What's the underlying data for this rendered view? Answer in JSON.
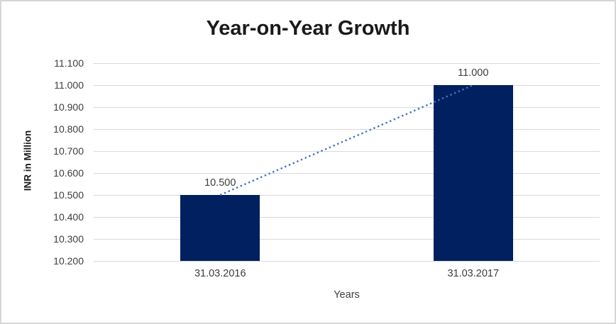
{
  "window": {
    "background": "#ffffff",
    "border_color": "#d6d6d6"
  },
  "chart_data": {
    "type": "bar",
    "title": "Year-on-Year Growth",
    "categories": [
      "31.03.2016",
      "31.03.2017"
    ],
    "series": [
      {
        "name": "INR in Million",
        "values": [
          10500,
          11000
        ]
      }
    ],
    "value_labels": [
      "10.500",
      "11.000"
    ],
    "xlabel": "Years",
    "ylabel": "INR in Million",
    "ylim": [
      10200,
      11100
    ],
    "ytick_step": 100,
    "ytick_labels": [
      "10.200",
      "10.300",
      "10.400",
      "10.500",
      "10.600",
      "10.700",
      "10.800",
      "10.900",
      "11.000",
      "11.100"
    ],
    "grid": true,
    "legend": "none",
    "bar_color": "#002060",
    "gridline_color": "#d9d9d9",
    "trendline": {
      "style": "dotted",
      "color": "#4472c4",
      "from_value": 10500,
      "to_value": 11000
    }
  }
}
